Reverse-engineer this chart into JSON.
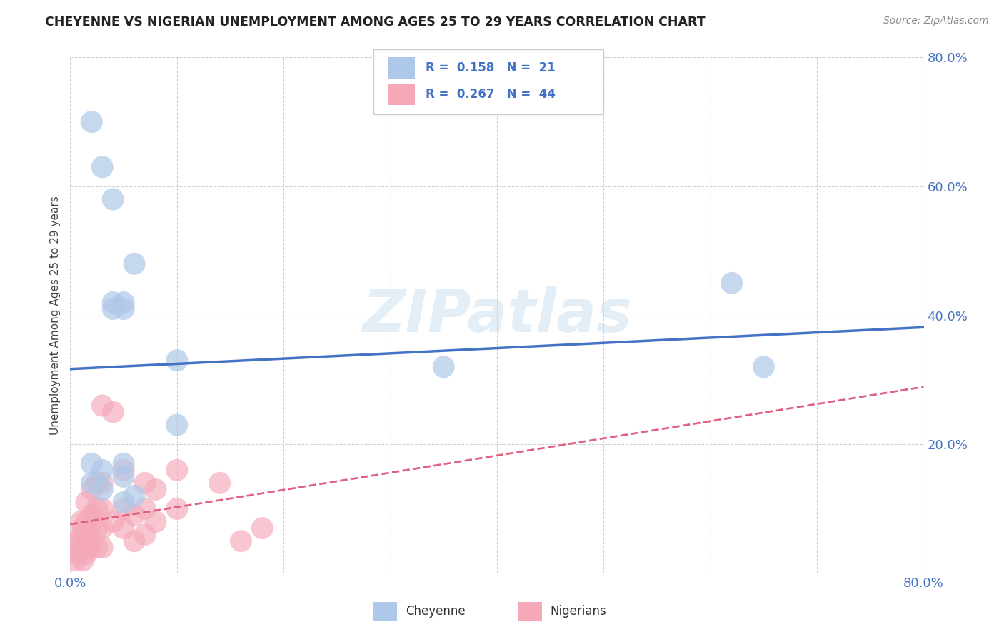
{
  "title": "CHEYENNE VS NIGERIAN UNEMPLOYMENT AMONG AGES 25 TO 29 YEARS CORRELATION CHART",
  "source": "Source: ZipAtlas.com",
  "ylabel": "Unemployment Among Ages 25 to 29 years",
  "xlim": [
    0.0,
    0.8
  ],
  "ylim": [
    0.0,
    0.8
  ],
  "xticks": [
    0.0,
    0.1,
    0.2,
    0.3,
    0.4,
    0.5,
    0.6,
    0.7,
    0.8
  ],
  "yticks": [
    0.0,
    0.2,
    0.4,
    0.6,
    0.8
  ],
  "cheyenne_R": 0.158,
  "cheyenne_N": 21,
  "nigerian_R": 0.267,
  "nigerian_N": 44,
  "cheyenne_color": "#adc8e8",
  "nigerian_color": "#f4a8b8",
  "cheyenne_line_color": "#4472c4",
  "nigerian_line_color": "#e06080",
  "watermark": "ZIPatlas",
  "background_color": "#ffffff",
  "tick_color": "#4472c4",
  "cheyenne_x": [
    0.02,
    0.03,
    0.04,
    0.04,
    0.05,
    0.05,
    0.06,
    0.1,
    0.1,
    0.35,
    0.62,
    0.65,
    0.02,
    0.03,
    0.03,
    0.04,
    0.05,
    0.05,
    0.05,
    0.06,
    0.02
  ],
  "cheyenne_y": [
    0.7,
    0.63,
    0.58,
    0.42,
    0.41,
    0.42,
    0.48,
    0.33,
    0.23,
    0.32,
    0.45,
    0.32,
    0.17,
    0.16,
    0.13,
    0.41,
    0.17,
    0.15,
    0.11,
    0.12,
    0.14
  ],
  "nigerian_x": [
    0.005,
    0.005,
    0.007,
    0.008,
    0.01,
    0.01,
    0.012,
    0.012,
    0.012,
    0.015,
    0.015,
    0.015,
    0.015,
    0.018,
    0.018,
    0.02,
    0.02,
    0.02,
    0.025,
    0.025,
    0.025,
    0.025,
    0.03,
    0.03,
    0.03,
    0.03,
    0.03,
    0.04,
    0.04,
    0.05,
    0.05,
    0.05,
    0.06,
    0.06,
    0.07,
    0.07,
    0.07,
    0.08,
    0.08,
    0.1,
    0.1,
    0.14,
    0.16,
    0.18
  ],
  "nigerian_y": [
    0.02,
    0.04,
    0.03,
    0.05,
    0.06,
    0.08,
    0.02,
    0.04,
    0.07,
    0.03,
    0.05,
    0.08,
    0.11,
    0.04,
    0.07,
    0.05,
    0.09,
    0.13,
    0.04,
    0.07,
    0.1,
    0.14,
    0.04,
    0.07,
    0.1,
    0.14,
    0.26,
    0.08,
    0.25,
    0.07,
    0.1,
    0.16,
    0.05,
    0.09,
    0.06,
    0.1,
    0.14,
    0.08,
    0.13,
    0.1,
    0.16,
    0.14,
    0.05,
    0.07
  ]
}
